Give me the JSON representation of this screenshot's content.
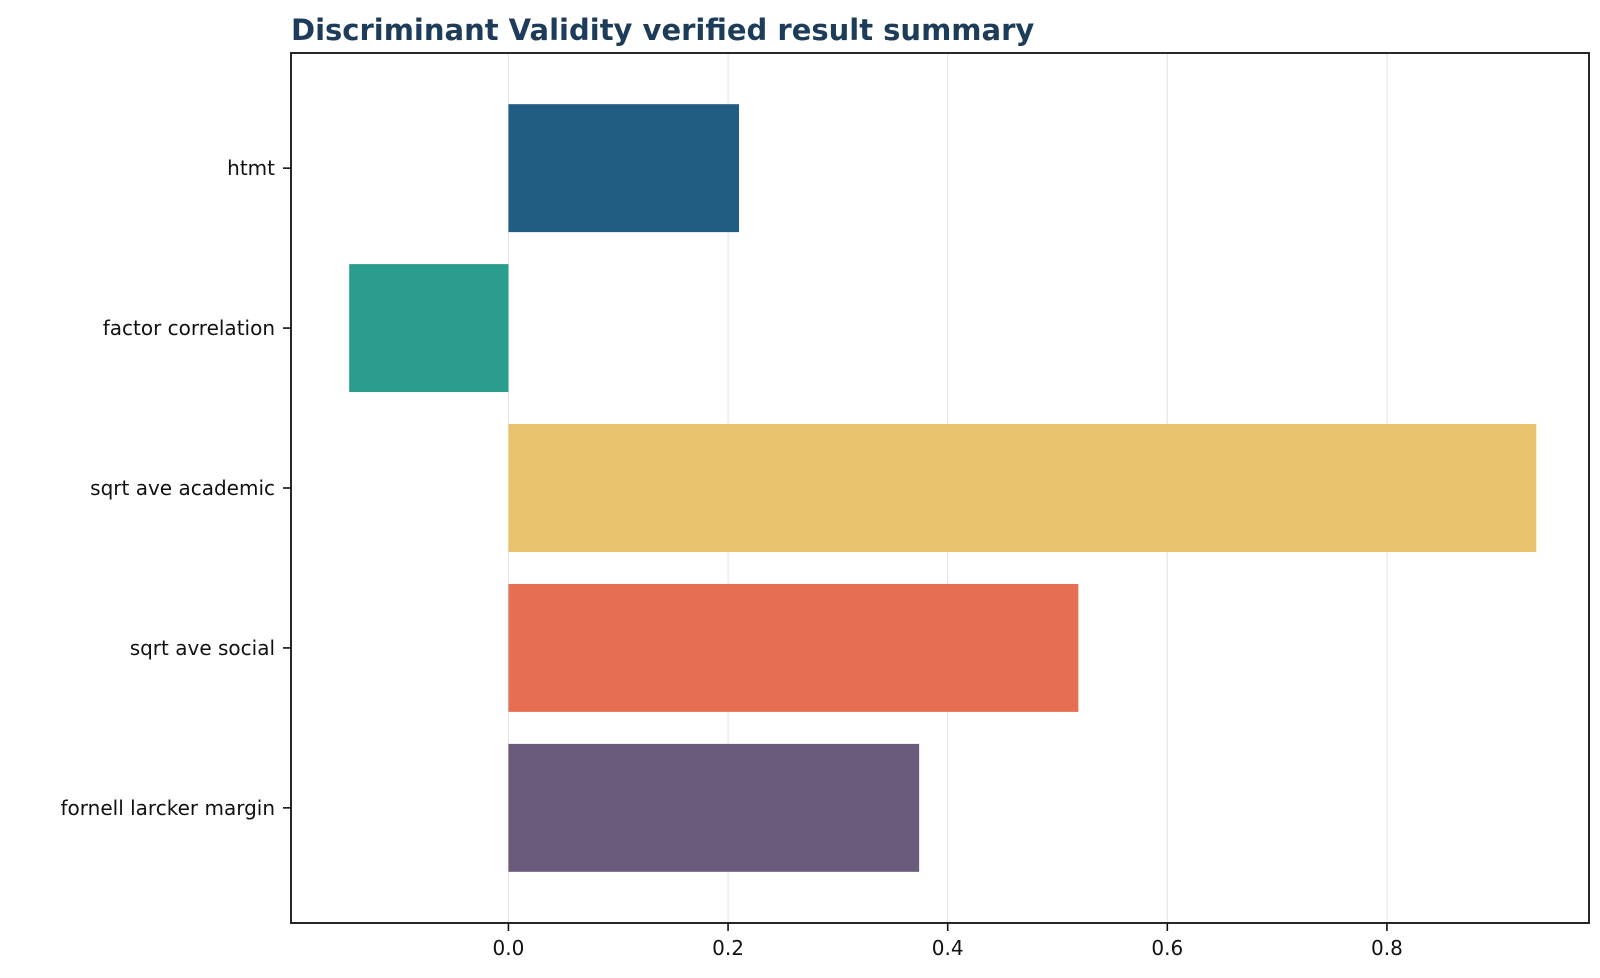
{
  "chart_data": {
    "type": "bar",
    "orientation": "horizontal",
    "title": "Discriminant Validity verified result summary",
    "xlabel": "",
    "ylabel": "",
    "categories": [
      "htmt",
      "factor correlation",
      "sqrt ave academic",
      "sqrt ave social",
      "fornell larcker margin"
    ],
    "values": [
      0.21,
      -0.145,
      0.936,
      0.519,
      0.374
    ],
    "xlim": [
      -0.198,
      0.984
    ],
    "xticks": [
      "0.0",
      "0.2",
      "0.4",
      "0.6",
      "0.8"
    ],
    "grid": "x-axis only",
    "legend": "none",
    "colors": {
      "bars": [
        "#215d82",
        "#2a9d8f",
        "#e8c46c",
        "#e76f51",
        "#6b5b7b"
      ],
      "title": "#1d3c5a",
      "grid": "#e6e6e6",
      "axis": "#111111"
    }
  }
}
